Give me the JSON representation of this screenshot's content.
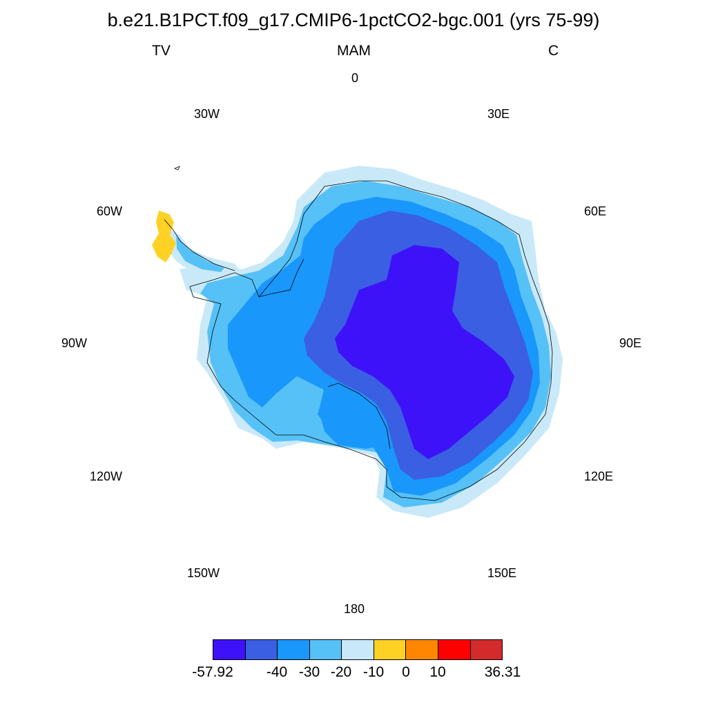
{
  "header": {
    "title": "b.e21.B1PCT.f09_g17.CMIP6-1pctCO2-bgc.001 (yrs 75-99)",
    "left": "TV",
    "center": "MAM",
    "right": "C"
  },
  "map": {
    "projection": "south-polar-stereographic",
    "longitude_labels": {
      "l0": "0",
      "l30e": "30E",
      "l60e": "60E",
      "l90e": "90E",
      "l120e": "120E",
      "l150e": "150E",
      "l180": "180",
      "l150w": "150W",
      "l120w": "120W",
      "l90w": "90W",
      "l60w": "60W",
      "l30w": "30W"
    },
    "fill_colors": {
      "bin1": "#3e12f8",
      "bin2": "#3a5fe3",
      "bin3": "#1a97fb",
      "bin4": "#56c1f7",
      "bin5": "#c9e9f8",
      "bin6": "#fed125"
    }
  },
  "colorbar": {
    "colors": [
      "#3e12f8",
      "#3a5fe3",
      "#1a97fb",
      "#56c1f7",
      "#c9e9f8",
      "#fed125",
      "#fe8602",
      "#fe0000",
      "#d32b2b"
    ],
    "labels": {
      "min": "-57.92",
      "t40": "-40",
      "t30": "-30",
      "t20": "-20",
      "t10": "-10",
      "t0": "0",
      "tp10": "10",
      "max": "36.31"
    }
  }
}
